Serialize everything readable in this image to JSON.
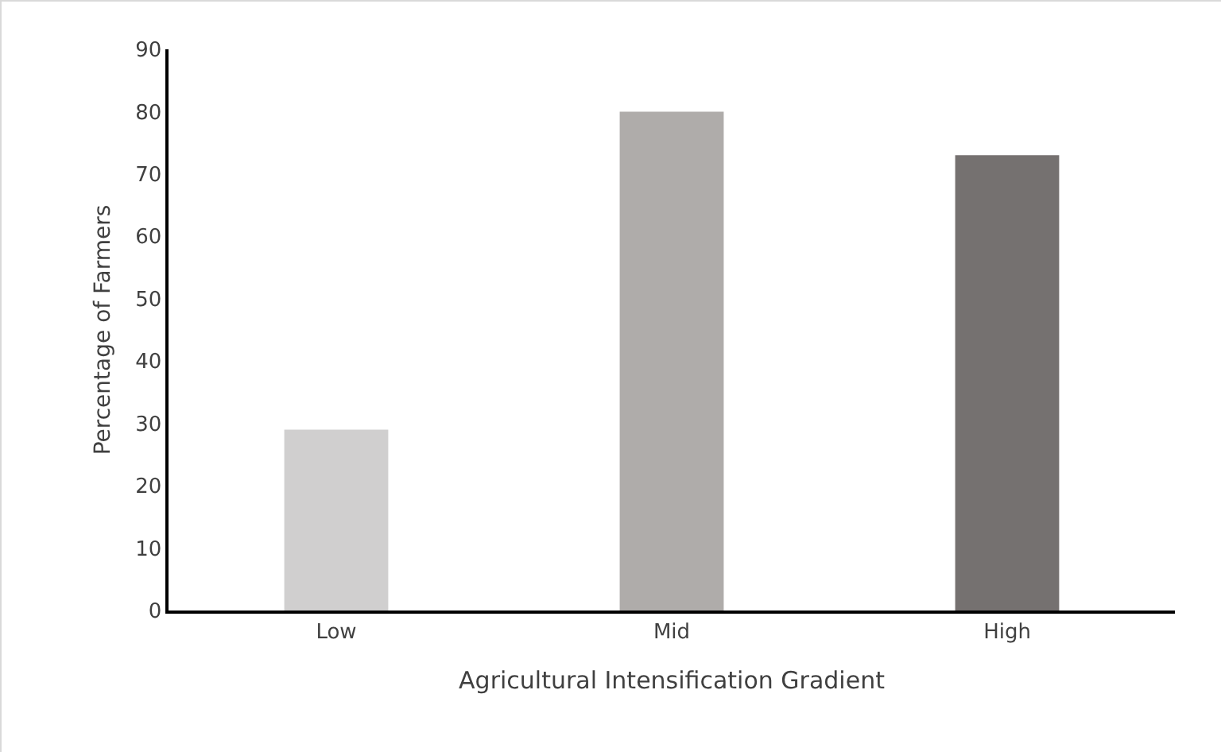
{
  "chart_data": {
    "type": "bar",
    "xlabel": "Agricultural Intensification Gradient",
    "ylabel": "Percentage of Farmers",
    "categories": [
      "Low",
      "Mid",
      "High"
    ],
    "values": [
      29,
      80,
      73
    ],
    "colors": [
      "#d0cfcf",
      "#afacaa",
      "#757170"
    ],
    "ylim": [
      0,
      90
    ],
    "yticks": [
      0,
      10,
      20,
      30,
      40,
      50,
      60,
      70,
      80,
      90
    ],
    "grid": false
  }
}
